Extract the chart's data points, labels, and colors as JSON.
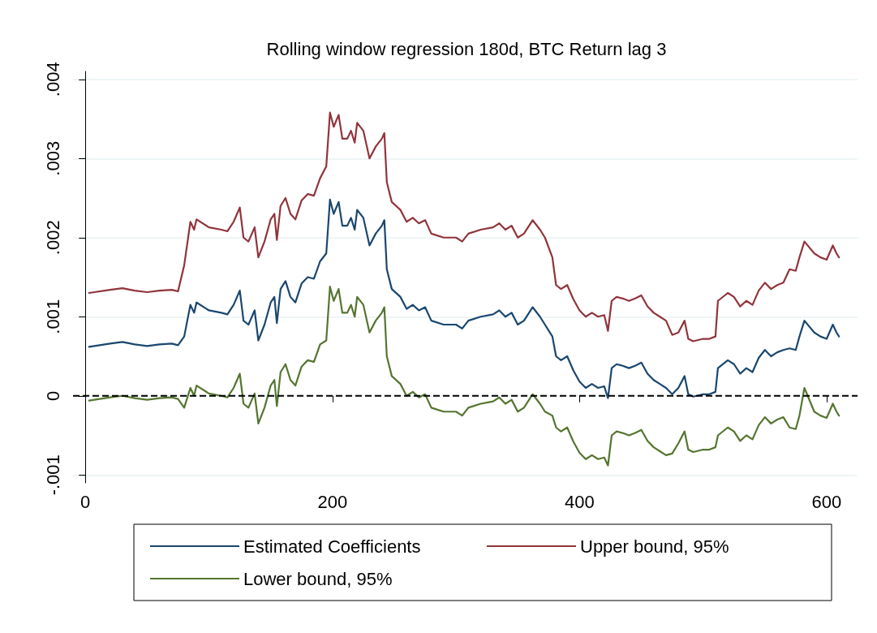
{
  "chart_data": {
    "type": "line",
    "title": "Rolling window regression 180d, BTC Return lag 3",
    "x": [
      3,
      20,
      30,
      40,
      50,
      60,
      70,
      75,
      80,
      85,
      88,
      90,
      100,
      110,
      115,
      120,
      125,
      128,
      132,
      137,
      140,
      145,
      150,
      153,
      155,
      158,
      162,
      166,
      170,
      175,
      180,
      185,
      190,
      195,
      198,
      201,
      205,
      208,
      212,
      215,
      218,
      220,
      225,
      230,
      235,
      240,
      242,
      244,
      248,
      255,
      260,
      265,
      270,
      275,
      280,
      290,
      300,
      305,
      310,
      320,
      330,
      335,
      340,
      345,
      350,
      355,
      362,
      368,
      372,
      378,
      381,
      385,
      390,
      395,
      400,
      405,
      410,
      415,
      420,
      423,
      426,
      430,
      435,
      440,
      445,
      450,
      455,
      460,
      465,
      470,
      475,
      480,
      485,
      488,
      492,
      500,
      505,
      510,
      512,
      520,
      525,
      530,
      535,
      540,
      545,
      550,
      555,
      560,
      565,
      570,
      575,
      578,
      582,
      590,
      595,
      600,
      605,
      608,
      610
    ],
    "series": [
      {
        "name": "Estimated Coefficients",
        "color": "#1a476f",
        "values": [
          0.00062,
          0.00066,
          0.00068,
          0.00065,
          0.00063,
          0.00065,
          0.00066,
          0.00064,
          0.00075,
          0.00115,
          0.00105,
          0.00118,
          0.00108,
          0.00105,
          0.00103,
          0.00115,
          0.00133,
          0.00095,
          0.0009,
          0.00108,
          0.0007,
          0.0009,
          0.00118,
          0.00125,
          0.00092,
          0.00135,
          0.00145,
          0.00125,
          0.00118,
          0.00142,
          0.0015,
          0.00148,
          0.0017,
          0.0018,
          0.00248,
          0.0023,
          0.00245,
          0.00215,
          0.00215,
          0.00225,
          0.0021,
          0.00235,
          0.00225,
          0.0019,
          0.00205,
          0.00215,
          0.00222,
          0.0016,
          0.00135,
          0.00125,
          0.0011,
          0.00115,
          0.00108,
          0.00112,
          0.00095,
          0.0009,
          0.0009,
          0.00085,
          0.00095,
          0.001,
          0.00103,
          0.00108,
          0.001,
          0.00105,
          0.0009,
          0.00095,
          0.00112,
          0.001,
          0.0009,
          0.00075,
          0.0005,
          0.00045,
          0.0005,
          0.00032,
          0.00018,
          0.0001,
          0.00015,
          0.0001,
          0.00012,
          -3e-05,
          0.00035,
          0.0004,
          0.00038,
          0.00035,
          0.00038,
          0.00042,
          0.00028,
          0.0002,
          0.00015,
          0.0001,
          2e-05,
          0.0001,
          0.00025,
          2e-05,
          -1e-05,
          2e-05,
          2e-05,
          5e-05,
          0.00035,
          0.00045,
          0.0004,
          0.00028,
          0.00035,
          0.0003,
          0.00048,
          0.00058,
          0.0005,
          0.00055,
          0.00058,
          0.0006,
          0.00058,
          0.00075,
          0.00095,
          0.0008,
          0.00075,
          0.00072,
          0.0009,
          0.0008,
          0.00075
        ]
      },
      {
        "name": "Upper bound, 95%",
        "color": "#90353b",
        "values": [
          0.0013,
          0.00134,
          0.00136,
          0.00133,
          0.00131,
          0.00133,
          0.00134,
          0.00132,
          0.00165,
          0.0022,
          0.0021,
          0.00223,
          0.00213,
          0.0021,
          0.00208,
          0.0022,
          0.00238,
          0.002,
          0.00195,
          0.00213,
          0.00175,
          0.00195,
          0.00223,
          0.0023,
          0.00197,
          0.0024,
          0.0025,
          0.0023,
          0.00223,
          0.00247,
          0.00255,
          0.00253,
          0.00275,
          0.0029,
          0.00358,
          0.0034,
          0.00355,
          0.00325,
          0.00325,
          0.00335,
          0.0032,
          0.00345,
          0.00335,
          0.003,
          0.00315,
          0.00325,
          0.00332,
          0.0027,
          0.00245,
          0.00235,
          0.0022,
          0.00225,
          0.00218,
          0.00222,
          0.00205,
          0.002,
          0.002,
          0.00195,
          0.00205,
          0.0021,
          0.00213,
          0.00218,
          0.0021,
          0.00215,
          0.002,
          0.00205,
          0.00222,
          0.0021,
          0.002,
          0.00175,
          0.0014,
          0.00135,
          0.0014,
          0.00122,
          0.00108,
          0.001,
          0.00105,
          0.001,
          0.00102,
          0.00082,
          0.0012,
          0.00125,
          0.00123,
          0.0012,
          0.00123,
          0.00127,
          0.00113,
          0.00105,
          0.001,
          0.00095,
          0.00077,
          0.0008,
          0.00095,
          0.00072,
          0.00069,
          0.00072,
          0.00072,
          0.00075,
          0.0012,
          0.0013,
          0.00125,
          0.00113,
          0.0012,
          0.00115,
          0.00133,
          0.00143,
          0.00135,
          0.0014,
          0.00143,
          0.0016,
          0.00158,
          0.00175,
          0.00195,
          0.0018,
          0.00175,
          0.00172,
          0.0019,
          0.0018,
          0.00175
        ]
      },
      {
        "name": "Lower bound, 95%",
        "color": "#55752f",
        "values": [
          -6e-05,
          -2e-05,
          0,
          -3e-05,
          -5e-05,
          -3e-05,
          -2e-05,
          -4e-05,
          -0.00015,
          0.0001,
          0,
          0.00013,
          3e-05,
          0,
          -2e-05,
          0.0001,
          0.00028,
          -0.0001,
          -0.00015,
          3e-05,
          -0.00035,
          -0.00015,
          0.00013,
          0.0002,
          -0.00013,
          0.0003,
          0.0004,
          0.0002,
          0.00013,
          0.00037,
          0.00045,
          0.00043,
          0.00065,
          0.0007,
          0.00138,
          0.0012,
          0.00135,
          0.00105,
          0.00105,
          0.00115,
          0.001,
          0.00125,
          0.00115,
          0.0008,
          0.00095,
          0.00105,
          0.00112,
          0.0005,
          0.00025,
          0.00015,
          0,
          5e-05,
          -2e-05,
          2e-05,
          -0.00015,
          -0.0002,
          -0.0002,
          -0.00025,
          -0.00015,
          -0.0001,
          -7e-05,
          -2e-05,
          -0.0001,
          -5e-05,
          -0.0002,
          -0.00015,
          2e-05,
          -0.0001,
          -0.0002,
          -0.00025,
          -0.0004,
          -0.00045,
          -0.0004,
          -0.00058,
          -0.00072,
          -0.0008,
          -0.00075,
          -0.0008,
          -0.00078,
          -0.00088,
          -0.0005,
          -0.00045,
          -0.00047,
          -0.0005,
          -0.00047,
          -0.00043,
          -0.00057,
          -0.00065,
          -0.0007,
          -0.00075,
          -0.00073,
          -0.0006,
          -0.00045,
          -0.00068,
          -0.00071,
          -0.00068,
          -0.00068,
          -0.00065,
          -0.0005,
          -0.0004,
          -0.00045,
          -0.00057,
          -0.0005,
          -0.00055,
          -0.00037,
          -0.00027,
          -0.00035,
          -0.0003,
          -0.00027,
          -0.0004,
          -0.00042,
          -0.00025,
          0.0001,
          -0.0002,
          -0.00025,
          -0.00028,
          -0.0001,
          -0.0002,
          -0.00025
        ]
      }
    ],
    "xlim": [
      -10,
      625
    ],
    "xticks": [
      0,
      200,
      400,
      600
    ],
    "ylim": [
      -0.0011,
      0.0041
    ],
    "yticks": [
      {
        "value": -0.001,
        "label": "-.001"
      },
      0,
      {
        "value": 0.001,
        "label": ".001"
      },
      {
        "value": 0.002,
        "label": ".002"
      },
      {
        "value": 0.003,
        "label": ".003"
      },
      {
        "value": 0.004,
        "label": ".004"
      }
    ],
    "ref_lines": [
      {
        "axis": "y",
        "value": 0,
        "color": "#000000",
        "line_style": "dashed"
      }
    ],
    "grid": "y",
    "legend": "bottom",
    "marker": "none",
    "line_style": "solid"
  }
}
